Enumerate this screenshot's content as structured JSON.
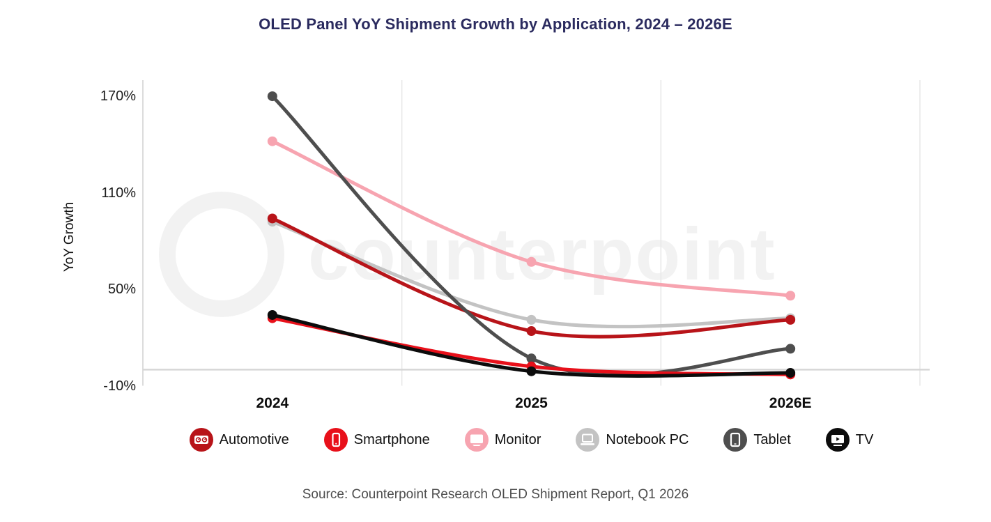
{
  "title": "OLED Panel YoY Shipment Growth by Application, 2024 – 2026E",
  "source": "Source: Counterpoint Research OLED Shipment Report, Q1 2026",
  "watermark_text": "counterpoint",
  "colors": {
    "background": "#ffffff",
    "title": "#2b2b5f",
    "axis_text": "#1c1c1c",
    "grid_line": "#e7e7e7",
    "axis_line": "#dcdcdc",
    "zero_line": "#d6d6d6",
    "source_text": "#4d4d4d"
  },
  "chart_data": {
    "type": "line",
    "title": "OLED Panel YoY Shipment Growth by Application, 2024 – 2026E",
    "xlabel": "",
    "ylabel": "YoY Growth",
    "categories": [
      "2024",
      "2025",
      "2026E"
    ],
    "y_ticks": [
      {
        "label": "170%",
        "value": 170
      },
      {
        "label": "110%",
        "value": 110
      },
      {
        "label": "50%",
        "value": 50
      },
      {
        "label": "-10%",
        "value": -10
      }
    ],
    "ylim": [
      -10,
      180
    ],
    "grid": "vertical category lines + zero line",
    "legend_position": "bottom",
    "smooth": true,
    "series": [
      {
        "name": "Automotive",
        "icon": "automotive-icon",
        "color": "#b81419",
        "values": [
          94,
          24,
          31
        ]
      },
      {
        "name": "Smartphone",
        "icon": "smartphone-icon",
        "color": "#e8101a",
        "values": [
          32,
          2,
          -3
        ]
      },
      {
        "name": "Monitor",
        "icon": "monitor-icon",
        "color": "#f7a4b0",
        "values": [
          142,
          67,
          46
        ]
      },
      {
        "name": "Notebook PC",
        "icon": "notebook-icon",
        "color": "#c3c3c3",
        "values": [
          92,
          31,
          32
        ]
      },
      {
        "name": "Tablet",
        "icon": "tablet-icon",
        "color": "#4e4e4e",
        "values": [
          170,
          7,
          13
        ]
      },
      {
        "name": "TV",
        "icon": "tv-icon",
        "color": "#0c0c0c",
        "values": [
          34,
          -1,
          -2
        ]
      }
    ],
    "draw_order": [
      2,
      3,
      0,
      4,
      1,
      5
    ]
  }
}
